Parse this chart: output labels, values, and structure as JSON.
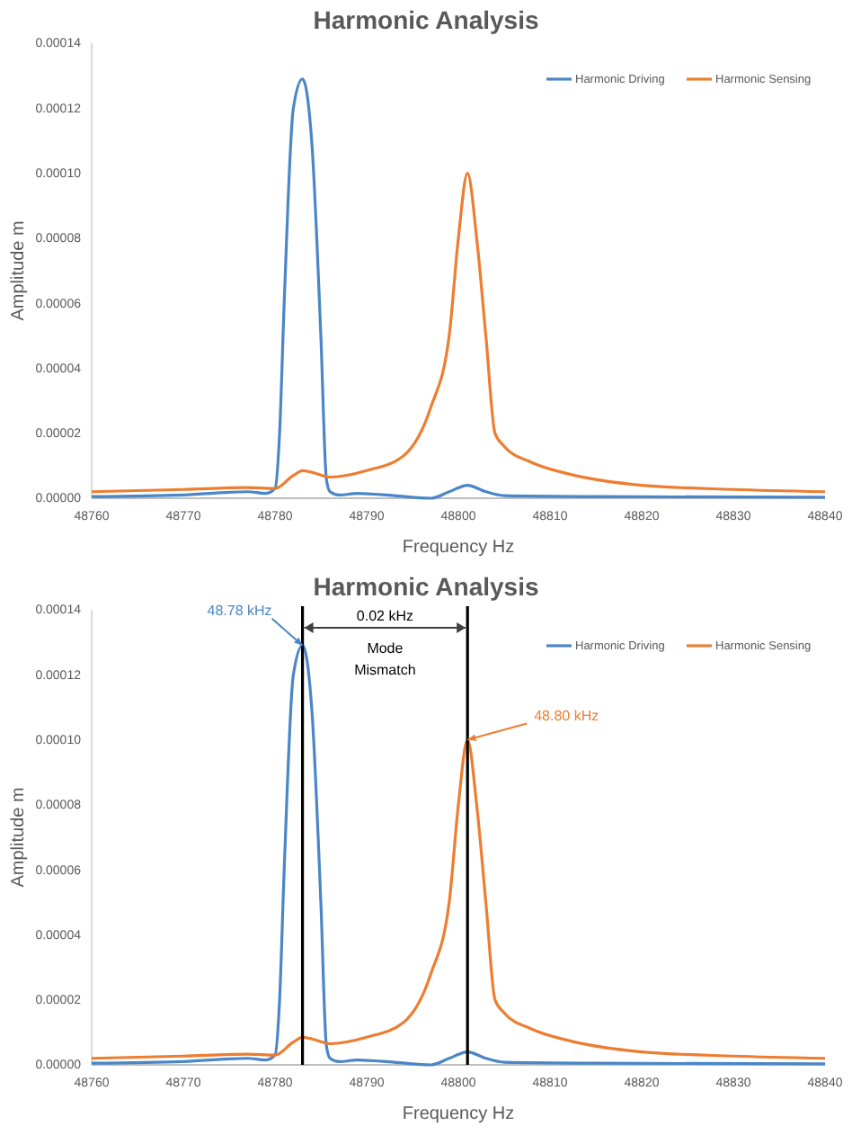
{
  "chart_data": [
    {
      "type": "line",
      "title": "Harmonic Analysis",
      "xlabel": "Frequency Hz",
      "ylabel": "Amplitude m",
      "xlim": [
        48760,
        48840
      ],
      "xticks": [
        48760,
        48770,
        48780,
        48790,
        48800,
        48810,
        48820,
        48830,
        48840
      ],
      "ylim": [
        0,
        0.00014
      ],
      "yticks": [
        {
          "value": 0,
          "label": "0.00000"
        },
        {
          "value": 2e-05,
          "label": "0.00002"
        },
        {
          "value": 4e-05,
          "label": "0.00004"
        },
        {
          "value": 6e-05,
          "label": "0.00006"
        },
        {
          "value": 8e-05,
          "label": "0.00008"
        },
        {
          "value": 0.0001,
          "label": "0.00010"
        },
        {
          "value": 0.00012,
          "label": "0.00012"
        },
        {
          "value": 0.00014,
          "label": "0.00014"
        }
      ],
      "grid": false,
      "legend": "top right",
      "marker": "none",
      "line_style": "solid",
      "series": [
        {
          "name": "Harmonic Driving",
          "color": "#4a86c8",
          "x": [
            48760,
            48770,
            48777,
            48779,
            48780,
            48780.5,
            48781,
            48782,
            48783,
            48784,
            48785,
            48785.6,
            48786,
            48787,
            48789,
            48793,
            48797,
            48799,
            48801,
            48803,
            48805,
            48815,
            48840
          ],
          "values": [
            5e-07,
            1e-06,
            2e-06,
            1.5e-06,
            3e-06,
            2e-05,
            6e-05,
            0.00012,
            0.000129,
            0.00011,
            5e-05,
            6e-06,
            2e-06,
            1e-06,
            1.5e-06,
            8e-07,
            0,
            2e-06,
            4e-06,
            2e-06,
            8e-07,
            5e-07,
            3e-07
          ]
        },
        {
          "name": "Harmonic Sensing",
          "color": "#ed7d31",
          "x": [
            48760,
            48770,
            48777,
            48780,
            48782,
            48783,
            48784,
            48786,
            48790,
            48794,
            48797,
            48799,
            48800,
            48801,
            48802,
            48803,
            48804,
            48805,
            48808,
            48812,
            48820,
            48830,
            48840
          ],
          "values": [
            2e-06,
            2.7e-06,
            3.3e-06,
            3e-06,
            7e-06,
            8.5e-06,
            8e-06,
            6.5e-06,
            8.5e-06,
            1.3e-05,
            2.8e-05,
            5e-05,
            8e-05,
            0.0001,
            8e-05,
            5e-05,
            2e-05,
            1.6e-05,
            1.1e-05,
            7.5e-06,
            4e-06,
            2.7e-06,
            2e-06
          ]
        }
      ]
    },
    {
      "type": "line",
      "title": "Harmonic Analysis",
      "xlabel": "Frequency Hz",
      "ylabel": "Amplitude m",
      "xlim": [
        48760,
        48840
      ],
      "xticks": [
        48760,
        48770,
        48780,
        48790,
        48800,
        48810,
        48820,
        48830,
        48840
      ],
      "ylim": [
        0,
        0.00014
      ],
      "yticks": [
        {
          "value": 0,
          "label": "0.00000"
        },
        {
          "value": 2e-05,
          "label": "0.00002"
        },
        {
          "value": 4e-05,
          "label": "0.00004"
        },
        {
          "value": 6e-05,
          "label": "0.00006"
        },
        {
          "value": 8e-05,
          "label": "0.00008"
        },
        {
          "value": 0.0001,
          "label": "0.00010"
        },
        {
          "value": 0.00012,
          "label": "0.00012"
        },
        {
          "value": 0.00014,
          "label": "0.00014"
        }
      ],
      "grid": false,
      "legend": "top right",
      "marker": "none",
      "line_style": "solid",
      "series": [
        {
          "name": "Harmonic Driving",
          "color": "#4a86c8",
          "x": [
            48760,
            48770,
            48777,
            48779,
            48780,
            48780.5,
            48781,
            48782,
            48783,
            48784,
            48785,
            48785.6,
            48786,
            48787,
            48789,
            48793,
            48797,
            48799,
            48801,
            48803,
            48805,
            48815,
            48840
          ],
          "values": [
            5e-07,
            1e-06,
            2e-06,
            1.5e-06,
            3e-06,
            2e-05,
            6e-05,
            0.00012,
            0.000129,
            0.00011,
            5e-05,
            6e-06,
            2e-06,
            1e-06,
            1.5e-06,
            8e-07,
            0,
            2e-06,
            4e-06,
            2e-06,
            8e-07,
            5e-07,
            3e-07
          ]
        },
        {
          "name": "Harmonic Sensing",
          "color": "#ed7d31",
          "x": [
            48760,
            48770,
            48777,
            48780,
            48782,
            48783,
            48784,
            48786,
            48790,
            48794,
            48797,
            48799,
            48800,
            48801,
            48802,
            48803,
            48804,
            48805,
            48808,
            48812,
            48820,
            48830,
            48840
          ],
          "values": [
            2e-06,
            2.7e-06,
            3.3e-06,
            3e-06,
            7e-06,
            8.5e-06,
            8e-06,
            6.5e-06,
            8.5e-06,
            1.3e-05,
            2.8e-05,
            5e-05,
            8e-05,
            0.0001,
            8e-05,
            5e-05,
            2e-05,
            1.6e-05,
            1.1e-05,
            7.5e-06,
            4e-06,
            2.7e-06,
            2e-06
          ]
        }
      ],
      "ref_lines": [
        {
          "axis": "x",
          "value": 48783,
          "color": "#000000"
        },
        {
          "axis": "x",
          "value": 48801,
          "color": "#000000"
        }
      ],
      "annotations": [
        {
          "text": "48.78 kHz",
          "x": 48783,
          "y": 0.000129
        },
        {
          "text": "48.80 kHz",
          "x": 48801,
          "y": 0.0001
        },
        "0.02 kHz",
        "Mode Mismatch"
      ]
    }
  ]
}
